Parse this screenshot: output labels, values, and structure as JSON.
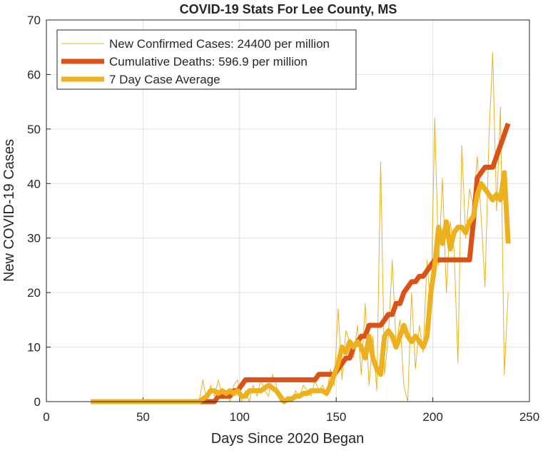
{
  "chart_data": {
    "type": "line",
    "title": "COVID-19 Stats For Lee County, MS",
    "x_label": "Days Since 2020 Began",
    "y_label": "New COVID-19 Cases",
    "xlim": [
      0,
      250
    ],
    "xticks": [
      0,
      50,
      100,
      150,
      200,
      250
    ],
    "ylim": [
      0,
      70
    ],
    "yticks": [
      0,
      10,
      20,
      30,
      40,
      50,
      60,
      70
    ],
    "grid": true,
    "legend": "top-left",
    "x": [
      23,
      25,
      27,
      29,
      31,
      33,
      35,
      37,
      39,
      41,
      43,
      45,
      47,
      49,
      51,
      53,
      55,
      57,
      59,
      61,
      63,
      65,
      67,
      69,
      71,
      73,
      75,
      77,
      79,
      81,
      83,
      85,
      87,
      89,
      91,
      93,
      95,
      97,
      99,
      101,
      103,
      105,
      107,
      109,
      111,
      113,
      115,
      117,
      119,
      121,
      123,
      125,
      127,
      129,
      131,
      133,
      135,
      137,
      139,
      141,
      143,
      145,
      147,
      149,
      151,
      153,
      155,
      157,
      159,
      161,
      163,
      165,
      167,
      169,
      171,
      173,
      175,
      177,
      179,
      181,
      183,
      185,
      187,
      189,
      191,
      193,
      195,
      197,
      199,
      201,
      203,
      205,
      207,
      209,
      211,
      213,
      215,
      217,
      219,
      221,
      223,
      225,
      227,
      229,
      231,
      233,
      235,
      237,
      239
    ],
    "series": [
      {
        "name": "New Confirmed Cases: 24400 per million",
        "color": "#EDB120",
        "width": 1,
        "values": [
          0,
          0,
          0,
          0,
          0,
          0,
          0,
          0,
          0,
          0,
          0,
          0,
          0,
          0,
          0,
          0,
          0,
          0,
          0,
          0,
          0,
          0,
          0,
          0,
          0,
          0,
          0,
          0,
          0,
          4,
          0,
          3,
          1,
          4,
          1,
          2,
          0,
          3,
          4,
          0,
          2,
          0,
          3,
          1,
          4,
          2,
          1,
          5,
          3,
          0,
          0,
          1,
          0,
          2,
          1,
          3,
          2,
          1,
          4,
          2,
          3,
          1,
          6,
          3,
          17,
          4,
          13,
          11,
          8,
          14,
          5,
          18,
          3,
          12,
          2,
          44,
          5,
          12,
          26,
          10,
          15,
          3,
          0,
          20,
          6,
          14,
          9,
          26,
          16,
          52,
          25,
          41,
          20,
          33,
          28,
          7,
          47,
          30,
          39,
          36,
          45,
          34,
          21,
          48,
          64,
          35,
          54,
          5,
          20
        ]
      },
      {
        "name": "Cumulative Deaths: 596.9 per million",
        "color": "#D95319",
        "width": 7,
        "values": [
          0,
          0,
          0,
          0,
          0,
          0,
          0,
          0,
          0,
          0,
          0,
          0,
          0,
          0,
          0,
          0,
          0,
          0,
          0,
          0,
          0,
          0,
          0,
          0,
          0,
          0,
          0,
          0,
          0,
          0,
          0,
          0,
          0,
          1,
          1,
          1,
          1,
          2,
          2,
          3,
          4,
          4,
          4,
          4,
          4,
          4,
          4,
          4,
          4,
          4,
          4,
          4,
          4,
          4,
          4,
          4,
          4,
          4,
          4,
          5,
          5,
          5,
          5,
          5,
          6,
          7,
          8,
          8,
          10,
          11,
          12,
          12,
          14,
          14,
          14,
          14,
          15,
          16,
          16,
          18,
          18,
          20,
          21,
          22,
          22,
          23,
          23,
          24,
          25,
          26,
          26,
          26,
          26,
          26,
          26,
          26,
          26,
          26,
          26,
          33,
          41,
          42,
          43,
          43,
          43,
          45,
          47,
          49,
          51
        ]
      },
      {
        "name": "7 Day Case Average",
        "color": "#EDB120",
        "width": 7,
        "values": [
          0,
          0,
          0,
          0,
          0,
          0,
          0,
          0,
          0,
          0,
          0,
          0,
          0,
          0,
          0,
          0,
          0,
          0,
          0,
          0,
          0,
          0,
          0,
          0,
          0,
          0,
          0,
          0,
          0,
          0.5,
          1,
          2,
          2,
          1.5,
          2,
          1.5,
          2,
          1.5,
          2,
          1,
          1,
          2,
          2,
          2,
          2,
          2.5,
          3,
          2.5,
          2,
          1,
          0,
          0.5,
          0.5,
          1,
          1,
          1.5,
          1.5,
          2,
          2,
          2,
          2,
          1.5,
          3,
          5,
          7,
          10,
          9,
          11,
          10,
          11,
          10,
          8,
          12,
          8,
          6,
          5,
          12,
          13,
          12,
          10,
          12,
          14,
          12,
          11,
          12,
          11,
          10,
          12,
          20,
          25,
          32,
          29,
          33,
          28,
          31,
          32,
          32,
          31,
          33,
          34,
          38,
          40,
          39,
          38,
          37,
          38,
          37,
          42,
          29
        ]
      }
    ]
  }
}
